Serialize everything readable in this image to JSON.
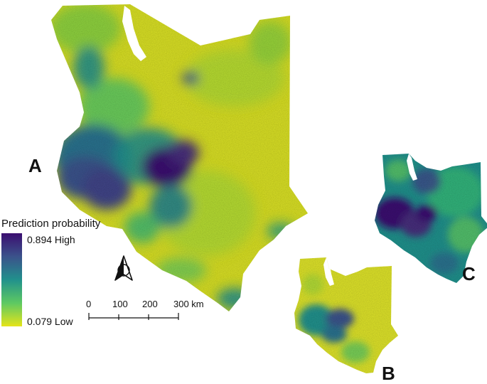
{
  "panels": {
    "a": "A",
    "b": "B",
    "c": "C"
  },
  "legend": {
    "title": "Prediction probability",
    "high_label": "0.894 High",
    "low_label": "0.079 Low",
    "high_value": 0.894,
    "low_value": 0.079,
    "ramp_colors": [
      "#3b0f70",
      "#3b528b",
      "#21918c",
      "#5ec962",
      "#e5e419"
    ]
  },
  "scale_bar": {
    "ticks": [
      "0",
      "100",
      "200",
      "300 km"
    ]
  },
  "north_arrow": {
    "icon": "north-arrow-icon"
  },
  "colors": {
    "outline": "#333333",
    "text": "#111111"
  }
}
